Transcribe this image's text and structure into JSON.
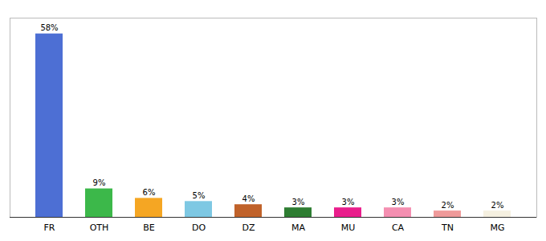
{
  "chart_data": {
    "type": "bar",
    "categories": [
      "FR",
      "OTH",
      "BE",
      "DO",
      "DZ",
      "MA",
      "MU",
      "CA",
      "TN",
      "MG"
    ],
    "values": [
      58,
      9,
      6,
      5,
      4,
      3,
      3,
      3,
      2,
      2
    ],
    "value_labels": [
      "58%",
      "9%",
      "6%",
      "5%",
      "4%",
      "3%",
      "3%",
      "3%",
      "2%",
      "2%"
    ],
    "colors": [
      "#4d6fd4",
      "#3cb84a",
      "#f5a623",
      "#7ec8e3",
      "#c0622a",
      "#2e7d32",
      "#e91e8c",
      "#f48fb1",
      "#ef9a9a",
      "#f5f0e0"
    ],
    "ylim": [
      0,
      63
    ],
    "data_labels": true,
    "tick_labels": "x",
    "grid": false
  }
}
